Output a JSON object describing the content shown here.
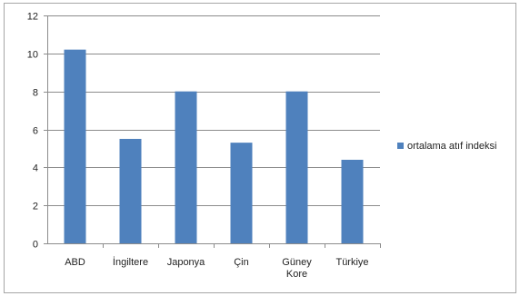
{
  "chart_data": {
    "type": "bar",
    "categories": [
      "ABD",
      "İngiltere",
      "Japonya",
      "Çin",
      "Güney Kore",
      "Türkiye"
    ],
    "series": [
      {
        "name": "ortalama atıf indeksi",
        "values": [
          10.2,
          5.5,
          8.0,
          5.3,
          8.0,
          4.4
        ],
        "color": "#4f81bd"
      }
    ],
    "title": "",
    "xlabel": "",
    "ylabel": "",
    "ylim": [
      0,
      12
    ],
    "yticks": [
      "0",
      "2",
      "4",
      "6",
      "8",
      "10",
      "12"
    ],
    "grid": true,
    "legend_position": "right"
  }
}
